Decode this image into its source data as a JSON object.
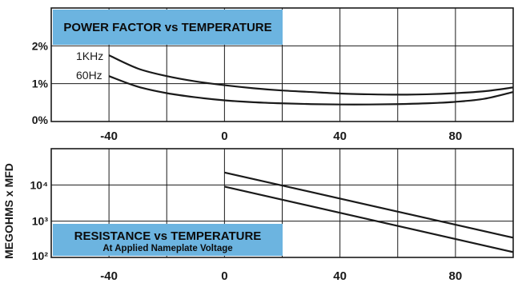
{
  "chart_data": [
    {
      "type": "line",
      "title": "POWER FACTOR vs TEMPERATURE",
      "xlabel": "",
      "ylabel": "",
      "xlim": [
        -60,
        100
      ],
      "ylim": [
        0,
        3
      ],
      "x_ticks": [
        -40,
        0,
        40,
        80
      ],
      "x_tick_labels": [
        "-40",
        "0",
        "40",
        "80"
      ],
      "y_ticks": [
        0,
        1,
        2
      ],
      "y_tick_labels": [
        "0%",
        "1%",
        "2%"
      ],
      "grid": true,
      "series": [
        {
          "name": "1KHz",
          "x": [
            -40,
            -30,
            -20,
            -10,
            0,
            10,
            20,
            30,
            40,
            50,
            60,
            70,
            80,
            90,
            100
          ],
          "y": [
            1.75,
            1.4,
            1.2,
            1.06,
            0.96,
            0.88,
            0.82,
            0.78,
            0.74,
            0.72,
            0.71,
            0.72,
            0.75,
            0.8,
            0.9
          ]
        },
        {
          "name": "60Hz",
          "x": [
            -40,
            -30,
            -20,
            -10,
            0,
            10,
            20,
            30,
            40,
            50,
            60,
            70,
            80,
            90,
            100
          ],
          "y": [
            1.2,
            0.92,
            0.75,
            0.64,
            0.56,
            0.51,
            0.48,
            0.46,
            0.45,
            0.45,
            0.46,
            0.48,
            0.52,
            0.6,
            0.78
          ]
        }
      ]
    },
    {
      "type": "line",
      "title": "RESISTANCE vs TEMPERATURE",
      "subtitle": "At Applied Nameplate Voltage",
      "xlabel": "",
      "ylabel": "MEGOHMS x MFD",
      "yscale": "log",
      "xlim": [
        -60,
        100
      ],
      "ylim": [
        100,
        100000
      ],
      "x_ticks": [
        -40,
        0,
        40,
        80
      ],
      "x_tick_labels": [
        "-40",
        "0",
        "40",
        "80"
      ],
      "y_ticks": [
        100,
        1000,
        10000
      ],
      "y_tick_labels": [
        "10²",
        "10³",
        "10⁴"
      ],
      "grid": true,
      "series": [
        {
          "name": "",
          "x": [
            0,
            100
          ],
          "y": [
            22000,
            350
          ]
        },
        {
          "name": "",
          "x": [
            0,
            100
          ],
          "y": [
            9000,
            140
          ]
        }
      ]
    }
  ]
}
